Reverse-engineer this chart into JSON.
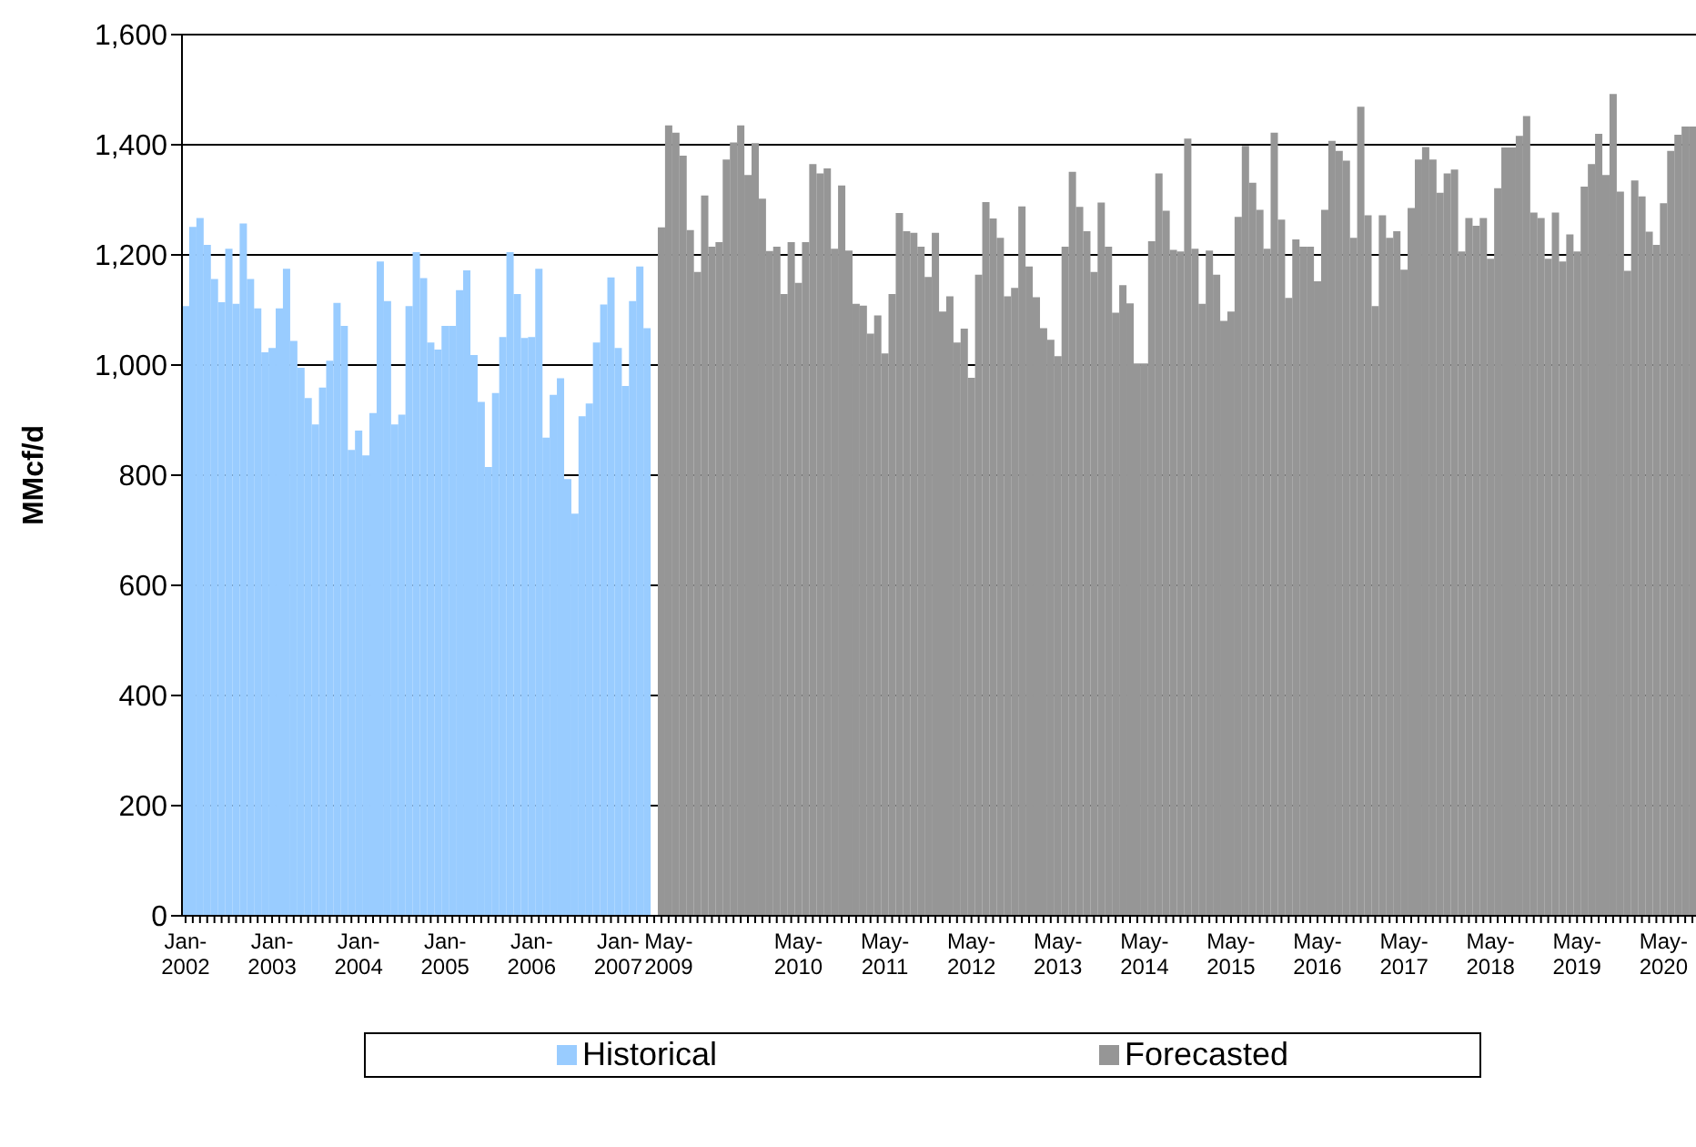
{
  "chart_data": {
    "type": "bar",
    "ylabel": "MMcf/d",
    "stacked": true,
    "grid": "y",
    "legend": "bottom",
    "ylim": [
      0,
      1600
    ],
    "yticks": [
      {
        "value": 0,
        "label": "0"
      },
      {
        "value": 200,
        "label": "200"
      },
      {
        "value": 400,
        "label": "400"
      },
      {
        "value": 600,
        "label": "600"
      },
      {
        "value": 800,
        "label": "800"
      },
      {
        "value": 1000,
        "label": "1,000"
      },
      {
        "value": 1200,
        "label": "1,200"
      },
      {
        "value": 1400,
        "label": "1,400"
      },
      {
        "value": 1600,
        "label": "1,600"
      }
    ],
    "categories": [
      "Jan-2002",
      null,
      null,
      null,
      null,
      null,
      null,
      null,
      null,
      null,
      null,
      null,
      "Jan-2003",
      null,
      null,
      null,
      null,
      null,
      null,
      null,
      null,
      null,
      null,
      null,
      "Jan-2004",
      null,
      null,
      null,
      null,
      null,
      null,
      null,
      null,
      null,
      null,
      null,
      "Jan-2005",
      null,
      null,
      null,
      null,
      null,
      null,
      null,
      null,
      null,
      null,
      null,
      "Jan-2006",
      null,
      null,
      null,
      null,
      null,
      null,
      null,
      null,
      null,
      null,
      null,
      "Jan-2007",
      null,
      null,
      null,
      null,
      null,
      null,
      "May-2009",
      null,
      null,
      null,
      null,
      null,
      null,
      null,
      null,
      null,
      null,
      null,
      null,
      null,
      null,
      null,
      null,
      null,
      "May-2010",
      null,
      null,
      null,
      null,
      null,
      null,
      null,
      null,
      null,
      null,
      null,
      "May-2011",
      null,
      null,
      null,
      null,
      null,
      null,
      null,
      null,
      null,
      null,
      null,
      "May-2012",
      null,
      null,
      null,
      null,
      null,
      null,
      null,
      null,
      null,
      null,
      null,
      "May-2013",
      null,
      null,
      null,
      null,
      null,
      null,
      null,
      null,
      null,
      null,
      null,
      "May-2014",
      null,
      null,
      null,
      null,
      null,
      null,
      null,
      null,
      null,
      null,
      null,
      "May-2015",
      null,
      null,
      null,
      null,
      null,
      null,
      null,
      null,
      null,
      null,
      null,
      "May-2016",
      null,
      null,
      null,
      null,
      null,
      null,
      null,
      null,
      null,
      null,
      null,
      "May-2017",
      null,
      null,
      null,
      null,
      null,
      null,
      null,
      null,
      null,
      null,
      null,
      "May-2018",
      null,
      null,
      null,
      null,
      null,
      null,
      null,
      null,
      null,
      null,
      null,
      "May-2019",
      null,
      null,
      null,
      null,
      null,
      null,
      null,
      null,
      null,
      null,
      null,
      "May-2020",
      null,
      null,
      null,
      null
    ],
    "series": [
      {
        "name": "Historical",
        "color": "#99ccff",
        "values": [
          1107,
          1251,
          1267,
          1218,
          1156,
          1114,
          1211,
          1111,
          1257,
          1156,
          1103,
          1023,
          1031,
          1103,
          1175,
          1044,
          995,
          940,
          892,
          959,
          1008,
          1113,
          1071,
          846,
          881,
          836,
          913,
          1188,
          1116,
          892,
          910,
          1107,
          1205,
          1158,
          1041,
          1028,
          1071,
          1071,
          1136,
          1172,
          1018,
          933,
          815,
          949,
          1051,
          1205,
          1129,
          1049,
          1051,
          1175,
          868,
          946,
          976,
          793,
          730,
          907,
          930,
          1041,
          1110,
          1159,
          1031,
          962,
          1116,
          1179,
          1067,
          null,
          null,
          null,
          null,
          null,
          null,
          null,
          null,
          null,
          null,
          null,
          null,
          null,
          null,
          null,
          null,
          null,
          null,
          null,
          null,
          null,
          null,
          null,
          null,
          null,
          null,
          null,
          null,
          null,
          null,
          null,
          null,
          null,
          null,
          null,
          null,
          null,
          null,
          null,
          null,
          null,
          null,
          null,
          null,
          null,
          null,
          null,
          null,
          null,
          null,
          null,
          null,
          null,
          null,
          null,
          null,
          null,
          null,
          null,
          null,
          null,
          null,
          null,
          null,
          null,
          null,
          null,
          null,
          null,
          null,
          null,
          null,
          null,
          null,
          null,
          null,
          null,
          null,
          null,
          null,
          null,
          null,
          null,
          null,
          null,
          null,
          null,
          null,
          null,
          null,
          null,
          null,
          null,
          null,
          null,
          null,
          null,
          null,
          null,
          null,
          null,
          null,
          null,
          null,
          null,
          null,
          null,
          null,
          null,
          null,
          null,
          null,
          null,
          null,
          null,
          null,
          null,
          null,
          null,
          null,
          null,
          null,
          null,
          null,
          null,
          null,
          null,
          null,
          null,
          null,
          null,
          null,
          null,
          null,
          null,
          null,
          null,
          null,
          null,
          null,
          null,
          null,
          null,
          null,
          null
        ]
      },
      {
        "name": "Forecasted",
        "color": "#969696",
        "values": [
          null,
          null,
          null,
          null,
          null,
          null,
          null,
          null,
          null,
          null,
          null,
          null,
          null,
          null,
          null,
          null,
          null,
          null,
          null,
          null,
          null,
          null,
          null,
          null,
          null,
          null,
          null,
          null,
          null,
          null,
          null,
          null,
          null,
          null,
          null,
          null,
          null,
          null,
          null,
          null,
          null,
          null,
          null,
          null,
          null,
          null,
          null,
          null,
          null,
          null,
          null,
          null,
          null,
          null,
          null,
          null,
          null,
          null,
          null,
          null,
          null,
          null,
          null,
          null,
          null,
          null,
          1250,
          1435,
          1422,
          1380,
          1245,
          1169,
          1308,
          1215,
          1223,
          1373,
          1404,
          1435,
          1345,
          1403,
          1302,
          1207,
          1215,
          1129,
          1223,
          1149,
          1223,
          1365,
          1348,
          1357,
          1211,
          1326,
          1208,
          1111,
          1108,
          1057,
          1090,
          1021,
          1129,
          1276,
          1243,
          1240,
          1215,
          1160,
          1240,
          1097,
          1125,
          1041,
          1066,
          977,
          1164,
          1296,
          1266,
          1231,
          1125,
          1140,
          1288,
          1179,
          1123,
          1067,
          1046,
          1016,
          1215,
          1351,
          1287,
          1243,
          1169,
          1295,
          1215,
          1095,
          1145,
          1112,
          1003,
          1003,
          1225,
          1348,
          1280,
          1209,
          1206,
          1411,
          1211,
          1111,
          1208,
          1164,
          1080,
          1097,
          1269,
          1398,
          1331,
          1282,
          1211,
          1422,
          1264,
          1122,
          1228,
          1215,
          1215,
          1152,
          1282,
          1407,
          1389,
          1371,
          1231,
          1469,
          1272,
          1107,
          1272,
          1231,
          1243,
          1173,
          1285,
          1373,
          1396,
          1373,
          1313,
          1348,
          1355,
          1206,
          1267,
          1253,
          1267,
          1193,
          1321,
          1395,
          1395,
          1416,
          1452,
          1277,
          1267,
          1193,
          1277,
          1188,
          1237,
          1206,
          1324,
          1365,
          1420,
          1345,
          1492,
          1315,
          1171,
          1335,
          1306,
          1242,
          1218,
          1294,
          1389,
          1418,
          1433,
          1433
        ]
      }
    ]
  }
}
